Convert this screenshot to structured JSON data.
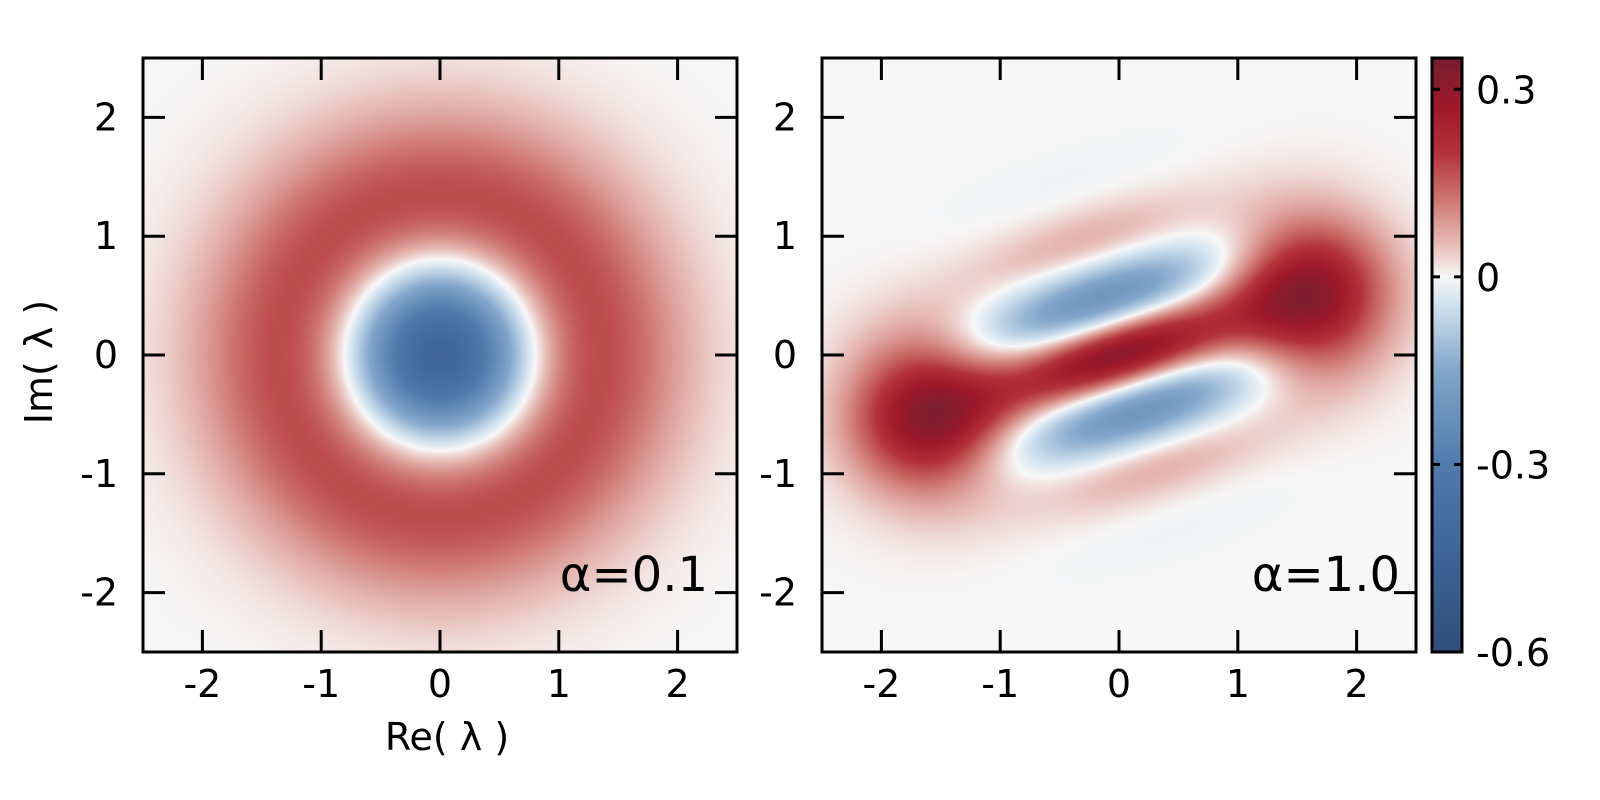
{
  "chart_data": [
    {
      "type": "heatmap",
      "title": "",
      "xlabel": "Re( λ )",
      "ylabel": "Im( λ )",
      "xlim": [
        -2.5,
        2.5
      ],
      "ylim": [
        -2.5,
        2.5
      ],
      "xticks": [
        -2,
        -1,
        0,
        1,
        2
      ],
      "yticks": [
        -2,
        -1,
        0,
        1,
        2
      ],
      "annotation": "α=0.1",
      "alpha": 0.1,
      "description_of_field": "ring: negative disk at origin (min ≈ -0.6), positive annulus (max ≈ 0.3)"
    },
    {
      "type": "heatmap",
      "title": "",
      "xlabel": "",
      "ylabel": "",
      "xlim": [
        -2.5,
        2.5
      ],
      "ylim": [
        -2.5,
        2.5
      ],
      "xticks": [
        -2,
        -1,
        0,
        1,
        2
      ],
      "yticks": [
        -2,
        -1,
        0,
        1,
        2
      ],
      "annotation": "α=1.0",
      "alpha": 1.0,
      "description_of_field": "two positive lobes near (-1.6,-0.5) and (1.6,0.5) with interference fringes between"
    }
  ],
  "colorbar": {
    "range": [
      -0.6,
      0.35
    ],
    "ticks": [
      {
        "value": 0.3,
        "label": "0.3"
      },
      {
        "value": 0,
        "label": "0"
      },
      {
        "value": -0.3,
        "label": "-0.3"
      },
      {
        "value": -0.6,
        "label": "-0.6"
      }
    ],
    "colors": {
      "max": "#7a2035",
      "positive": "#a5222c",
      "zero": "#f7f7f7",
      "negative_light": "#d9e7f2",
      "negative": "#4673a8",
      "min": "#2f4f7b"
    }
  }
}
